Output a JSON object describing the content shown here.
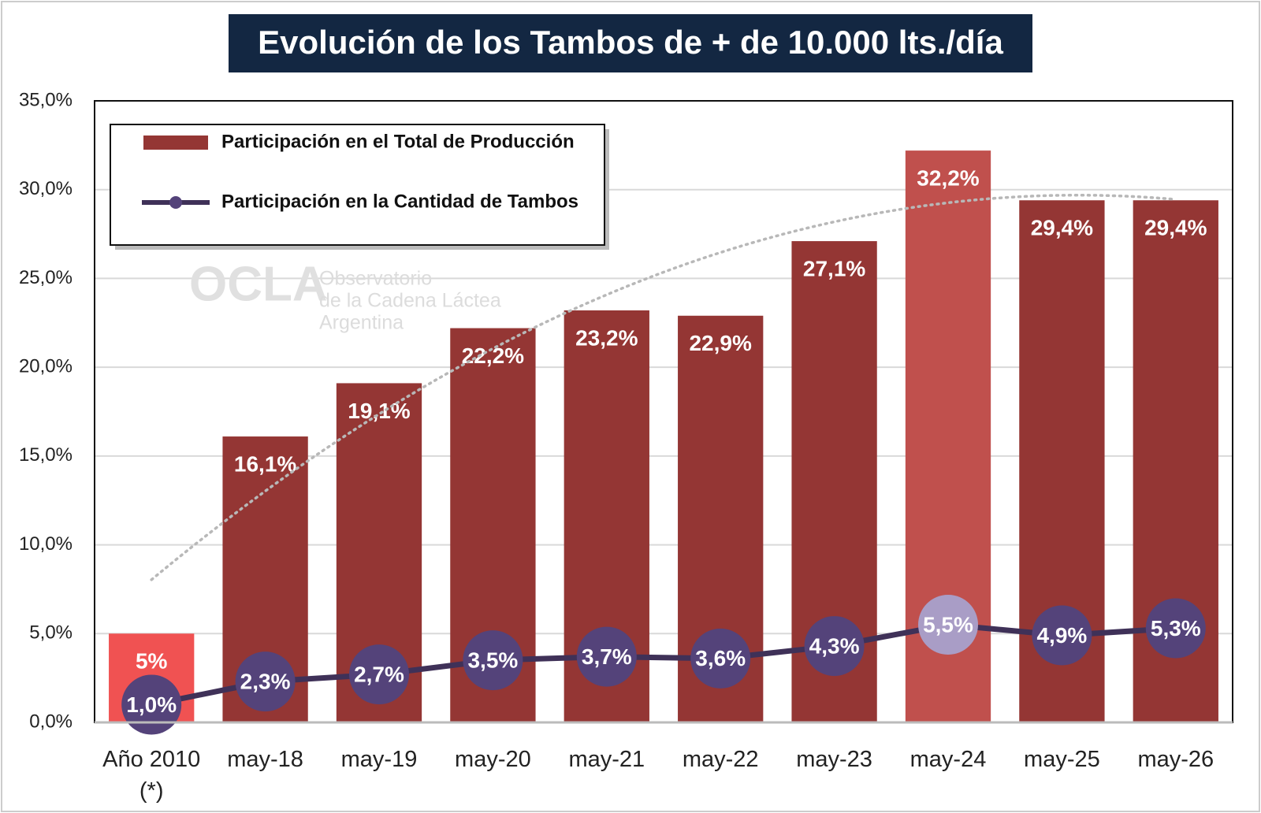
{
  "chart_data": {
    "type": "bar_line",
    "title": "Evolución de los Tambos de + de 10.000 lts./día",
    "categories": [
      "Año 2010 (*)",
      "may-18",
      "may-19",
      "may-20",
      "may-21",
      "may-22",
      "may-23",
      "may-24",
      "may-25",
      "may-26"
    ],
    "series": [
      {
        "name": "Participación en el Total de Producción",
        "type": "bar",
        "color": "#943634",
        "colors": [
          "#f05252",
          "#943634",
          "#943634",
          "#943634",
          "#943634",
          "#943634",
          "#943634",
          "#c0504d",
          "#943634",
          "#943634"
        ],
        "values": [
          5,
          16.1,
          19.1,
          22.2,
          23.2,
          22.9,
          27.1,
          32.2,
          29.4,
          29.4
        ],
        "value_labels": [
          "5%",
          "16,1%",
          "19,1%",
          "22,2%",
          "23,2%",
          "22,9%",
          "27,1%",
          "32,2%",
          "29,4%",
          "29,4%"
        ]
      },
      {
        "name": "Participación en la Cantidad de Tambos",
        "type": "line",
        "color": "#3f3158",
        "marker_colors": [
          "#54437a",
          "#54437a",
          "#54437a",
          "#54437a",
          "#54437a",
          "#54437a",
          "#54437a",
          "#a99dc6",
          "#54437a",
          "#54437a"
        ],
        "values": [
          1.0,
          2.3,
          2.7,
          3.5,
          3.7,
          3.6,
          4.3,
          5.5,
          4.9,
          5.3
        ],
        "value_labels": [
          "1,0%",
          "2,3%",
          "2,7%",
          "3,5%",
          "3,7%",
          "3,6%",
          "4,3%",
          "5,5%",
          "4,9%",
          "5,3%"
        ]
      }
    ],
    "ylim": [
      0,
      35
    ],
    "yticks": [
      {
        "value": 0,
        "label": "0,0%"
      },
      {
        "value": 5,
        "label": "5,0%"
      },
      {
        "value": 10,
        "label": "10,0%"
      },
      {
        "value": 15,
        "label": "15,0%"
      },
      {
        "value": 20,
        "label": "20,0%"
      },
      {
        "value": 25,
        "label": "25,0%"
      },
      {
        "value": 30,
        "label": "30,0%"
      },
      {
        "value": 35,
        "label": "35,0%"
      }
    ],
    "grid": true,
    "trendline": true,
    "legend": "upper left",
    "watermark": [
      "OCLA",
      "Observatorio",
      "de la Cadena Láctea",
      "Argentina"
    ]
  }
}
